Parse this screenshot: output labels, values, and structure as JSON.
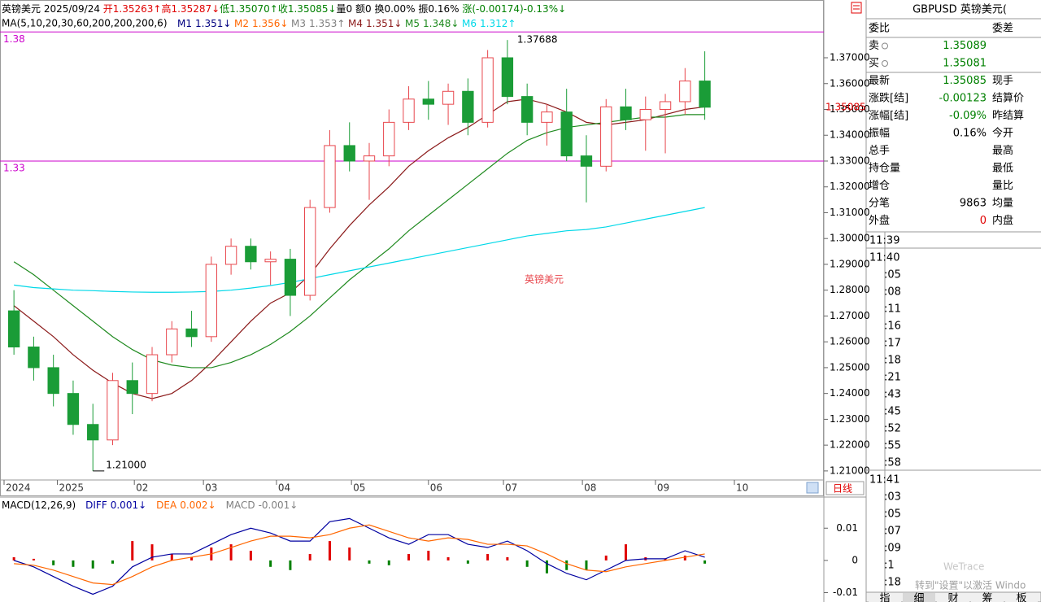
{
  "header": {
    "segments": [
      {
        "text": "英镑美元 2025/09/24 ",
        "color": "#000000"
      },
      {
        "text": "开1.35263↑",
        "color": "#e00000"
      },
      {
        "text": "高1.35287↓",
        "color": "#e00000"
      },
      {
        "text": "低1.35070↑",
        "color": "#008000"
      },
      {
        "text": "收1.35085↓",
        "color": "#008000"
      },
      {
        "text": "量0 额0 换0.00% 振0.16% ",
        "color": "#000000"
      },
      {
        "text": "涨(-0.00174)-0.13%↓",
        "color": "#008000"
      }
    ]
  },
  "period": "日线",
  "chart_data": [
    {
      "type": "candlestick",
      "ma_label": "MA(5,10,20,30,60,200,200,200,6)",
      "ma": [
        {
          "name": "M1",
          "color": "#000080",
          "value": 1.351,
          "trend": "↓"
        },
        {
          "name": "M2",
          "color": "#ff6600",
          "value": 1.356,
          "trend": "↓"
        },
        {
          "name": "M3",
          "color": "#808080",
          "value": 1.353,
          "trend": "↑"
        },
        {
          "name": "M4",
          "color": "#8b1a1a",
          "trend": "↓",
          "values": [
            1.274,
            1.268,
            1.262,
            1.255,
            1.249,
            1.244,
            1.24,
            1.238,
            1.24,
            1.245,
            1.252,
            1.26,
            1.268,
            1.275,
            1.279,
            1.286,
            1.296,
            1.305,
            1.313,
            1.32,
            1.328,
            1.334,
            1.339,
            1.343,
            1.348,
            1.353,
            1.354,
            1.352,
            1.349,
            1.345,
            1.344,
            1.345,
            1.346,
            1.348,
            1.35,
            1.351
          ]
        },
        {
          "name": "M5",
          "color": "#1f8a1f",
          "trend": "↓",
          "values": [
            1.291,
            1.286,
            1.28,
            1.274,
            1.268,
            1.262,
            1.257,
            1.253,
            1.251,
            1.25,
            1.25,
            1.252,
            1.255,
            1.259,
            1.264,
            1.27,
            1.277,
            1.284,
            1.29,
            1.296,
            1.303,
            1.309,
            1.315,
            1.321,
            1.327,
            1.333,
            1.338,
            1.341,
            1.343,
            1.344,
            1.345,
            1.346,
            1.347,
            1.347,
            1.348,
            1.348
          ]
        },
        {
          "name": "M6",
          "color": "#00d8e8",
          "trend": "↑",
          "values": [
            1.282,
            1.281,
            1.2805,
            1.28,
            1.2798,
            1.2795,
            1.2793,
            1.2792,
            1.2792,
            1.2793,
            1.2795,
            1.28,
            1.2808,
            1.2818,
            1.283,
            1.2845,
            1.286,
            1.2875,
            1.289,
            1.2905,
            1.292,
            1.2935,
            1.295,
            1.2965,
            1.298,
            1.2995,
            1.301,
            1.302,
            1.303,
            1.3035,
            1.3045,
            1.306,
            1.3075,
            1.309,
            1.3105,
            1.312
          ]
        }
      ],
      "up_color": "#e8474d",
      "down_color": "#1a9c37",
      "ohlc": [
        [
          1.272,
          1.28,
          1.255,
          1.258
        ],
        [
          1.258,
          1.262,
          1.245,
          1.25
        ],
        [
          1.25,
          1.255,
          1.235,
          1.24
        ],
        [
          1.24,
          1.245,
          1.224,
          1.228
        ],
        [
          1.228,
          1.236,
          1.21,
          1.222
        ],
        [
          1.222,
          1.248,
          1.22,
          1.245
        ],
        [
          1.245,
          1.252,
          1.232,
          1.24
        ],
        [
          1.24,
          1.258,
          1.237,
          1.255
        ],
        [
          1.255,
          1.268,
          1.252,
          1.265
        ],
        [
          1.265,
          1.272,
          1.258,
          1.262
        ],
        [
          1.262,
          1.293,
          1.26,
          1.29
        ],
        [
          1.29,
          1.3,
          1.286,
          1.297
        ],
        [
          1.297,
          1.3,
          1.288,
          1.291
        ],
        [
          1.291,
          1.295,
          1.282,
          1.292
        ],
        [
          1.292,
          1.296,
          1.27,
          1.278
        ],
        [
          1.278,
          1.315,
          1.276,
          1.312
        ],
        [
          1.312,
          1.342,
          1.31,
          1.336
        ],
        [
          1.336,
          1.345,
          1.326,
          1.33
        ],
        [
          1.33,
          1.337,
          1.315,
          1.332
        ],
        [
          1.332,
          1.35,
          1.328,
          1.345
        ],
        [
          1.345,
          1.359,
          1.342,
          1.354
        ],
        [
          1.354,
          1.361,
          1.346,
          1.352
        ],
        [
          1.352,
          1.36,
          1.344,
          1.357
        ],
        [
          1.357,
          1.362,
          1.34,
          1.345
        ],
        [
          1.345,
          1.373,
          1.343,
          1.37
        ],
        [
          1.37,
          1.37688,
          1.352,
          1.355
        ],
        [
          1.355,
          1.36,
          1.34,
          1.345
        ],
        [
          1.345,
          1.352,
          1.336,
          1.349
        ],
        [
          1.349,
          1.358,
          1.33,
          1.332
        ],
        [
          1.332,
          1.34,
          1.314,
          1.328
        ],
        [
          1.328,
          1.354,
          1.326,
          1.351
        ],
        [
          1.351,
          1.358,
          1.342,
          1.346
        ],
        [
          1.346,
          1.355,
          1.334,
          1.35
        ],
        [
          1.35,
          1.356,
          1.333,
          1.353
        ],
        [
          1.353,
          1.366,
          1.348,
          1.361
        ],
        [
          1.361,
          1.3725,
          1.346,
          1.35085
        ]
      ],
      "high_label": "1.37688",
      "low_label": "1.21000",
      "levels": [
        1.38,
        1.33
      ],
      "level_color": "#cc00cc",
      "watermark": "英镑美元",
      "xlim": [
        0,
        37
      ],
      "xticks": [
        {
          "value": 0,
          "label": "2024"
        },
        {
          "value": 2.7,
          "label": "2025"
        },
        {
          "value": 6.6,
          "label": "02"
        },
        {
          "value": 10.1,
          "label": "03"
        },
        {
          "value": 13.8,
          "label": "04"
        },
        {
          "value": 17.6,
          "label": "05"
        },
        {
          "value": 21.5,
          "label": "06"
        },
        {
          "value": 25.3,
          "label": "07"
        },
        {
          "value": 29.3,
          "label": "08"
        },
        {
          "value": 33,
          "label": "09"
        },
        {
          "value": 37,
          "label": "10"
        }
      ],
      "ylim": [
        1.2065,
        1.3867
      ],
      "yticks": [
        {
          "value": 1.21,
          "label": "1.21000"
        },
        {
          "value": 1.22,
          "label": "1.22000"
        },
        {
          "value": 1.23,
          "label": "1.23000"
        },
        {
          "value": 1.24,
          "label": "1.24000"
        },
        {
          "value": 1.25,
          "label": "1.25000"
        },
        {
          "value": 1.26,
          "label": "1.26000"
        },
        {
          "value": 1.27,
          "label": "1.27000"
        },
        {
          "value": 1.28,
          "label": "1.28000"
        },
        {
          "value": 1.29,
          "label": "1.29000"
        },
        {
          "value": 1.3,
          "label": "1.30000"
        },
        {
          "value": 1.31,
          "label": "1.31000"
        },
        {
          "value": 1.32,
          "label": "1.32000"
        },
        {
          "value": 1.33,
          "label": "1.33000"
        },
        {
          "value": 1.34,
          "label": "1.34000"
        },
        {
          "value": 1.35,
          "label": "1.35000"
        },
        {
          "value": 1.36,
          "label": "1.36000"
        },
        {
          "value": 1.37,
          "label": "1.37000"
        }
      ]
    },
    {
      "type": "macd",
      "title": "MACD(12,26,9)",
      "xlim": [
        0,
        37
      ],
      "ylim": [
        -0.0129,
        0.0194
      ],
      "yticks": [
        0.01,
        0,
        -0.01
      ],
      "series": [
        {
          "name": "DIFF",
          "color": "#0000a0",
          "trend": "↓",
          "values": [
            0,
            -0.002,
            -0.005,
            -0.008,
            -0.0105,
            -0.008,
            -0.002,
            0.001,
            0.002,
            0.002,
            0.005,
            0.008,
            0.01,
            0.0085,
            0.006,
            0.006,
            0.012,
            0.013,
            0.01,
            0.007,
            0.005,
            0.008,
            0.008,
            0.005,
            0.004,
            0.006,
            0.003,
            -0.001,
            -0.004,
            -0.006,
            -0.003,
            0,
            0.0005,
            0.0005,
            0.003,
            0.001
          ]
        },
        {
          "name": "DEA",
          "color": "#ff6600",
          "trend": "↓",
          "values": [
            -0.001,
            -0.0015,
            -0.003,
            -0.005,
            -0.007,
            -0.0075,
            -0.005,
            -0.002,
            0,
            0.001,
            0.002,
            0.004,
            0.006,
            0.0075,
            0.0075,
            0.007,
            0.008,
            0.01,
            0.011,
            0.009,
            0.007,
            0.006,
            0.007,
            0.0065,
            0.005,
            0.005,
            0.0045,
            0.002,
            -0.001,
            -0.003,
            -0.0035,
            -0.002,
            -0.001,
            0,
            0.001,
            0.002
          ]
        },
        {
          "name": "MACD",
          "color": "#808080",
          "trend": "↓",
          "up_color": "#e00000",
          "down_color": "#008000",
          "values": [
            0.001,
            0.0005,
            -0.0015,
            -0.002,
            -0.0025,
            -0.001,
            0.006,
            0.005,
            0.002,
            0.001,
            0.004,
            0.005,
            0.003,
            -0.002,
            -0.003,
            0.002,
            0.006,
            0.004,
            -0.001,
            -0.0015,
            0.002,
            0.003,
            0.001,
            -0.001,
            0.002,
            0.001,
            -0.002,
            -0.004,
            -0.003,
            -0.003,
            0.0015,
            0.005,
            0.001,
            0.0005,
            0.0015,
            -0.001
          ]
        }
      ]
    }
  ],
  "quote": {
    "title": "GBPUSD 英镑美元(",
    "rows": [
      {
        "label": "委比",
        "label2": "委差"
      },
      {
        "label": "卖",
        "value": 1.35089,
        "color": "#008000"
      },
      {
        "label": "买",
        "value": 1.35081,
        "color": "#008000"
      },
      {
        "label": "最新",
        "value": 1.35085,
        "color": "#008000",
        "label2": "现手"
      },
      {
        "label": "涨跌[结]",
        "value": -0.00123,
        "color": "#008000",
        "label2": "结算价"
      },
      {
        "label": "涨幅[结]",
        "value": "-0.09%",
        "color": "#008000",
        "label2": "昨结算"
      },
      {
        "label": "振幅",
        "value": "0.16%",
        "color": "#000000",
        "label2": "今开"
      },
      {
        "label": "总手",
        "label2": "最高"
      },
      {
        "label": "持仓量",
        "label2": "最低"
      },
      {
        "label": "增仓",
        "label2": "量比"
      },
      {
        "label": "分笔",
        "value": 9863,
        "color": "#000000",
        "label2": "均量"
      },
      {
        "label": "外盘",
        "value": 0,
        "color": "#e00000",
        "label2": "内盘"
      }
    ]
  },
  "trade_times": [
    [
      "11:39"
    ],
    [
      "11:40",
      ":05",
      ":08",
      ":11",
      ":16",
      ":17",
      ":18",
      ":21",
      ":43",
      ":45",
      ":52",
      ":55",
      ":58"
    ],
    [
      "11:41",
      ":03",
      ":05",
      ":07",
      ":09",
      ":1",
      ":18"
    ]
  ],
  "tabs": [
    "指",
    "细",
    "财",
    "筹",
    "板"
  ],
  "overlay": {
    "watermark": "WeTrace",
    "activation": "转到\"设置\"以激活 Windo"
  }
}
